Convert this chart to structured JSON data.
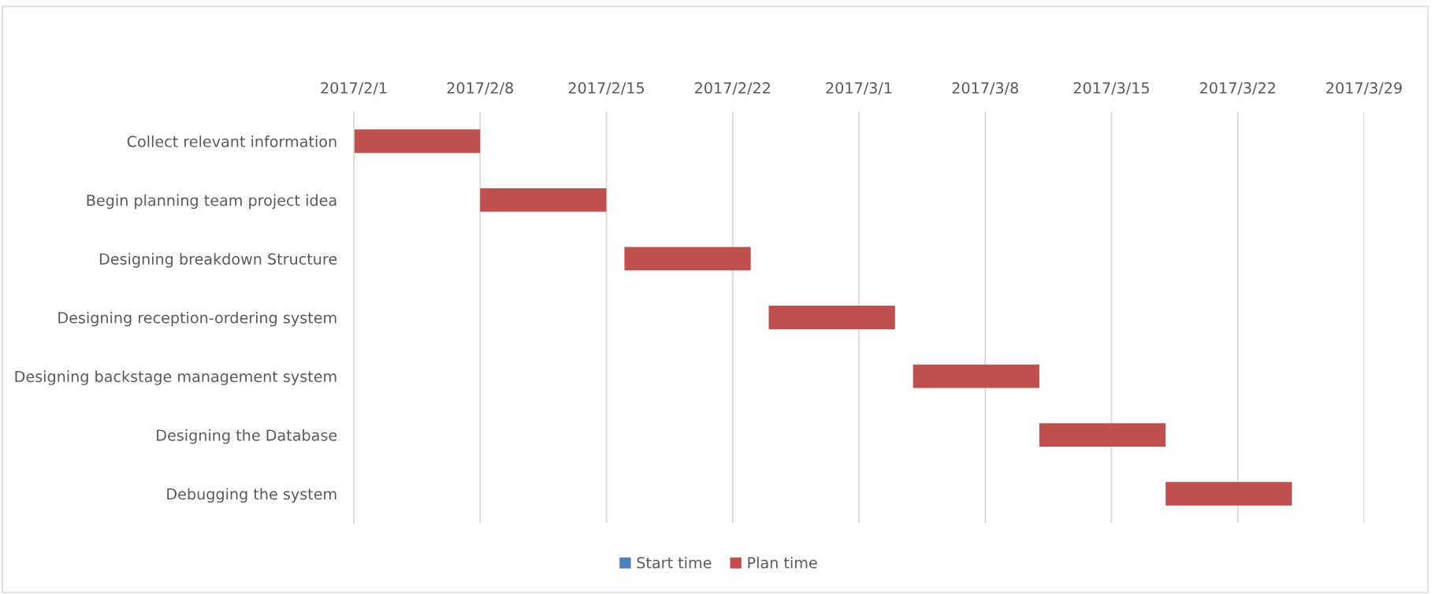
{
  "chart_data": {
    "type": "bar",
    "orientation": "horizontal",
    "categories": [
      "Collect relevant information",
      "Begin planning team project idea",
      "Designing breakdown Structure",
      "Designing reception-ordering system",
      "Designing backstage management system",
      "Designing the Database",
      "Debugging the system"
    ],
    "series": [
      {
        "name": "Start time",
        "color": "#4f81bd",
        "values": [
          null,
          null,
          null,
          null,
          null,
          null,
          null
        ]
      },
      {
        "name": "Plan time",
        "color": "#c0504d",
        "values": [
          7,
          7,
          7,
          7,
          7,
          7,
          7
        ],
        "base": [
          17198,
          17205,
          17213,
          17221,
          17229,
          17236,
          17243
        ]
      }
    ],
    "xlim": [
      "2017-02-01",
      "2017-03-29"
    ],
    "xticks": [
      {
        "value": "2017-02-01",
        "label": "2017/2/1"
      },
      {
        "value": "2017-02-08",
        "label": "2017/2/8"
      },
      {
        "value": "2017-02-15",
        "label": "2017/2/15"
      },
      {
        "value": "2017-02-22",
        "label": "2017/2/22"
      },
      {
        "value": "2017-03-01",
        "label": "2017/3/1"
      },
      {
        "value": "2017-03-08",
        "label": "2017/3/8"
      },
      {
        "value": "2017-03-15",
        "label": "2017/3/15"
      },
      {
        "value": "2017-03-22",
        "label": "2017/3/22"
      },
      {
        "value": "2017-03-29",
        "label": "2017/3/29"
      }
    ],
    "grid": "x",
    "legend": "bottom"
  }
}
